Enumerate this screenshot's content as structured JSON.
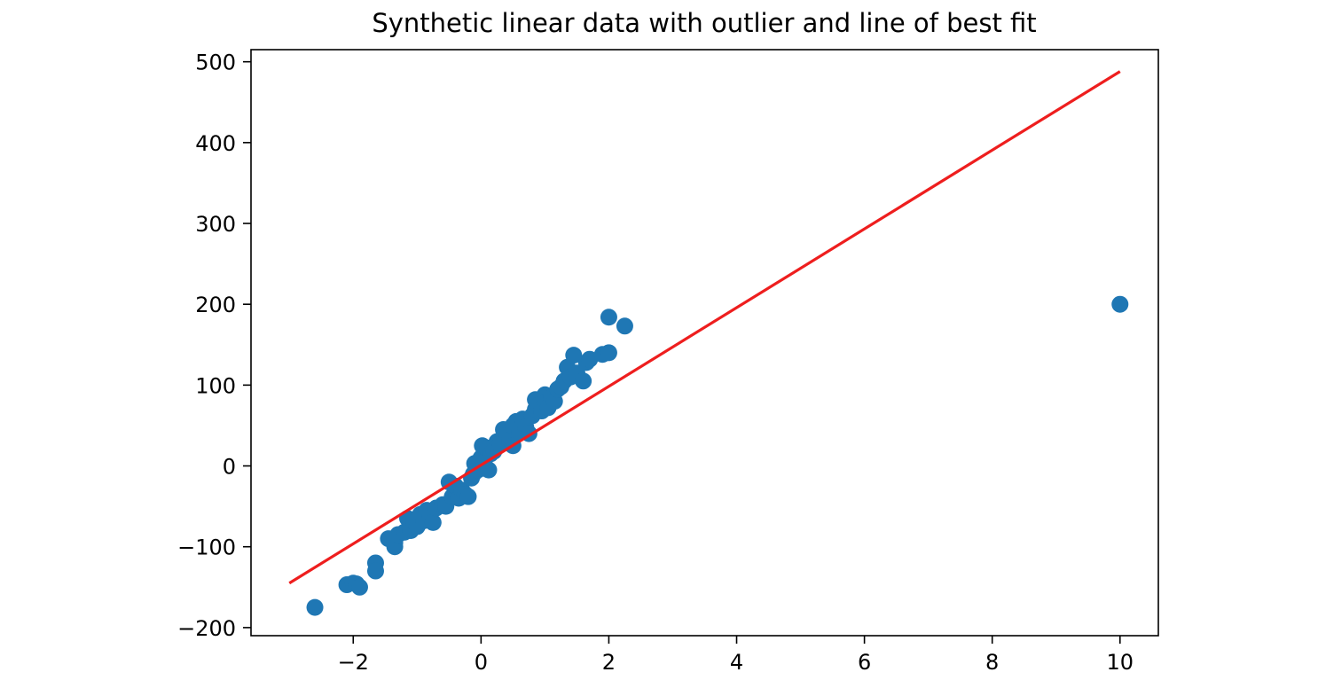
{
  "chart_data": {
    "type": "scatter",
    "title": "Synthetic linear data with outlier and line of best fit",
    "xlabel": "",
    "ylabel": "",
    "xlim": [
      -3.6,
      10.6
    ],
    "ylim": [
      -210,
      515
    ],
    "xticks": [
      -2,
      0,
      2,
      4,
      6,
      8,
      10
    ],
    "xtick_labels": [
      "−2",
      "0",
      "2",
      "4",
      "6",
      "8",
      "10"
    ],
    "yticks": [
      -200,
      -100,
      0,
      100,
      200,
      300,
      400,
      500
    ],
    "ytick_labels": [
      "−200",
      "−100",
      "0",
      "100",
      "200",
      "300",
      "400",
      "500"
    ],
    "grid": false,
    "legend": "none",
    "series": [
      {
        "kind": "scatter",
        "color": "#1f77b4",
        "points": [
          [
            -2.6,
            -175
          ],
          [
            -2.1,
            -147
          ],
          [
            -2.0,
            -145
          ],
          [
            -1.95,
            -146
          ],
          [
            -1.9,
            -150
          ],
          [
            -1.65,
            -120
          ],
          [
            -1.65,
            -130
          ],
          [
            -1.45,
            -90
          ],
          [
            -1.35,
            -100
          ],
          [
            -1.35,
            -95
          ],
          [
            -1.3,
            -85
          ],
          [
            -1.2,
            -82
          ],
          [
            -1.15,
            -65
          ],
          [
            -1.1,
            -80
          ],
          [
            -1.05,
            -70
          ],
          [
            -1.0,
            -75
          ],
          [
            -0.95,
            -60
          ],
          [
            -0.9,
            -68
          ],
          [
            -0.85,
            -55
          ],
          [
            -0.8,
            -62
          ],
          [
            -0.75,
            -70
          ],
          [
            -0.7,
            -52
          ],
          [
            -0.6,
            -48
          ],
          [
            -0.55,
            -50
          ],
          [
            -0.5,
            -20
          ],
          [
            -0.45,
            -38
          ],
          [
            -0.4,
            -25
          ],
          [
            -0.35,
            -40
          ],
          [
            -0.3,
            -30
          ],
          [
            -0.25,
            -35
          ],
          [
            -0.2,
            -38
          ],
          [
            -0.15,
            -15
          ],
          [
            -0.12,
            -10
          ],
          [
            -0.1,
            3
          ],
          [
            -0.05,
            -5
          ],
          [
            0.0,
            10
          ],
          [
            0.02,
            25
          ],
          [
            0.05,
            5
          ],
          [
            0.1,
            22
          ],
          [
            0.12,
            -5
          ],
          [
            0.15,
            15
          ],
          [
            0.2,
            18
          ],
          [
            0.25,
            30
          ],
          [
            0.3,
            28
          ],
          [
            0.35,
            45
          ],
          [
            0.4,
            38
          ],
          [
            0.45,
            32
          ],
          [
            0.5,
            25
          ],
          [
            0.5,
            50
          ],
          [
            0.55,
            55
          ],
          [
            0.6,
            42
          ],
          [
            0.65,
            58
          ],
          [
            0.7,
            48
          ],
          [
            0.75,
            40
          ],
          [
            0.8,
            62
          ],
          [
            0.85,
            70
          ],
          [
            0.85,
            82
          ],
          [
            0.9,
            75
          ],
          [
            0.95,
            68
          ],
          [
            1.0,
            88
          ],
          [
            1.0,
            78
          ],
          [
            1.05,
            72
          ],
          [
            1.1,
            85
          ],
          [
            1.15,
            80
          ],
          [
            1.2,
            95
          ],
          [
            1.25,
            98
          ],
          [
            1.3,
            105
          ],
          [
            1.35,
            122
          ],
          [
            1.4,
            110
          ],
          [
            1.45,
            137
          ],
          [
            1.5,
            115
          ],
          [
            1.6,
            105
          ],
          [
            1.65,
            128
          ],
          [
            1.7,
            132
          ],
          [
            1.9,
            138
          ],
          [
            2.0,
            140
          ],
          [
            2.0,
            184
          ],
          [
            2.25,
            173
          ],
          [
            10.0,
            200
          ]
        ]
      },
      {
        "kind": "line",
        "name": "line of best fit",
        "color": "#ee1e1e",
        "x": [
          -3.0,
          10.0
        ],
        "y": [
          -145,
          488
        ]
      }
    ]
  }
}
